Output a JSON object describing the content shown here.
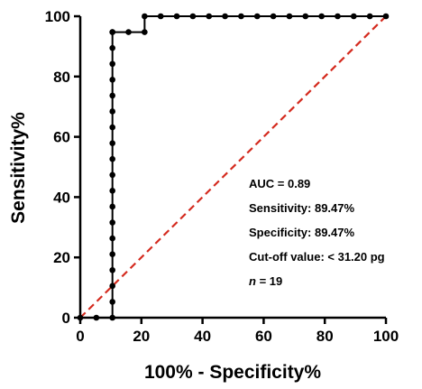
{
  "chart_data": {
    "type": "line",
    "xlabel": "100% - Specificity%",
    "ylabel": "Sensitivity%",
    "xlim": [
      0,
      100
    ],
    "ylim": [
      0,
      100
    ],
    "xticks": [
      "0",
      "20",
      "40",
      "60",
      "80",
      "100"
    ],
    "yticks": [
      "0",
      "20",
      "40",
      "60",
      "80",
      "100"
    ],
    "grid": false,
    "series": [
      {
        "color": "#000000",
        "marker": "circle",
        "x": [
          0,
          5.26,
          10.53,
          10.53,
          10.53,
          10.53,
          10.53,
          10.53,
          10.53,
          10.53,
          10.53,
          10.53,
          10.53,
          10.53,
          10.53,
          10.53,
          10.53,
          10.53,
          10.53,
          10.53,
          10.53,
          10.53,
          15.79,
          21.05,
          21.05,
          26.32,
          31.58,
          36.84,
          42.11,
          47.37,
          52.63,
          57.89,
          63.16,
          68.42,
          73.68,
          78.95,
          84.21,
          89.47,
          94.74,
          100
        ],
        "y": [
          0,
          0,
          0,
          5.26,
          10.53,
          15.79,
          21.05,
          26.32,
          31.58,
          36.84,
          42.11,
          47.37,
          52.63,
          57.89,
          63.16,
          68.42,
          73.68,
          78.95,
          84.21,
          89.47,
          94.74,
          94.74,
          94.74,
          94.74,
          100,
          100,
          100,
          100,
          100,
          100,
          100,
          100,
          100,
          100,
          100,
          100,
          100,
          100,
          100,
          100
        ]
      },
      {
        "color": "#d42a1e",
        "style": "dashed",
        "x": [
          0,
          100
        ],
        "y": [
          0,
          100
        ]
      }
    ],
    "annotations": [
      "AUC = 0.89",
      "Sensitivity: 89.47%",
      "Specificity: 89.47%",
      "Cut-off value: < 31.20 pg",
      "n = 19"
    ]
  },
  "annotation_n": {
    "italic": "n",
    "rest": " = 19"
  }
}
